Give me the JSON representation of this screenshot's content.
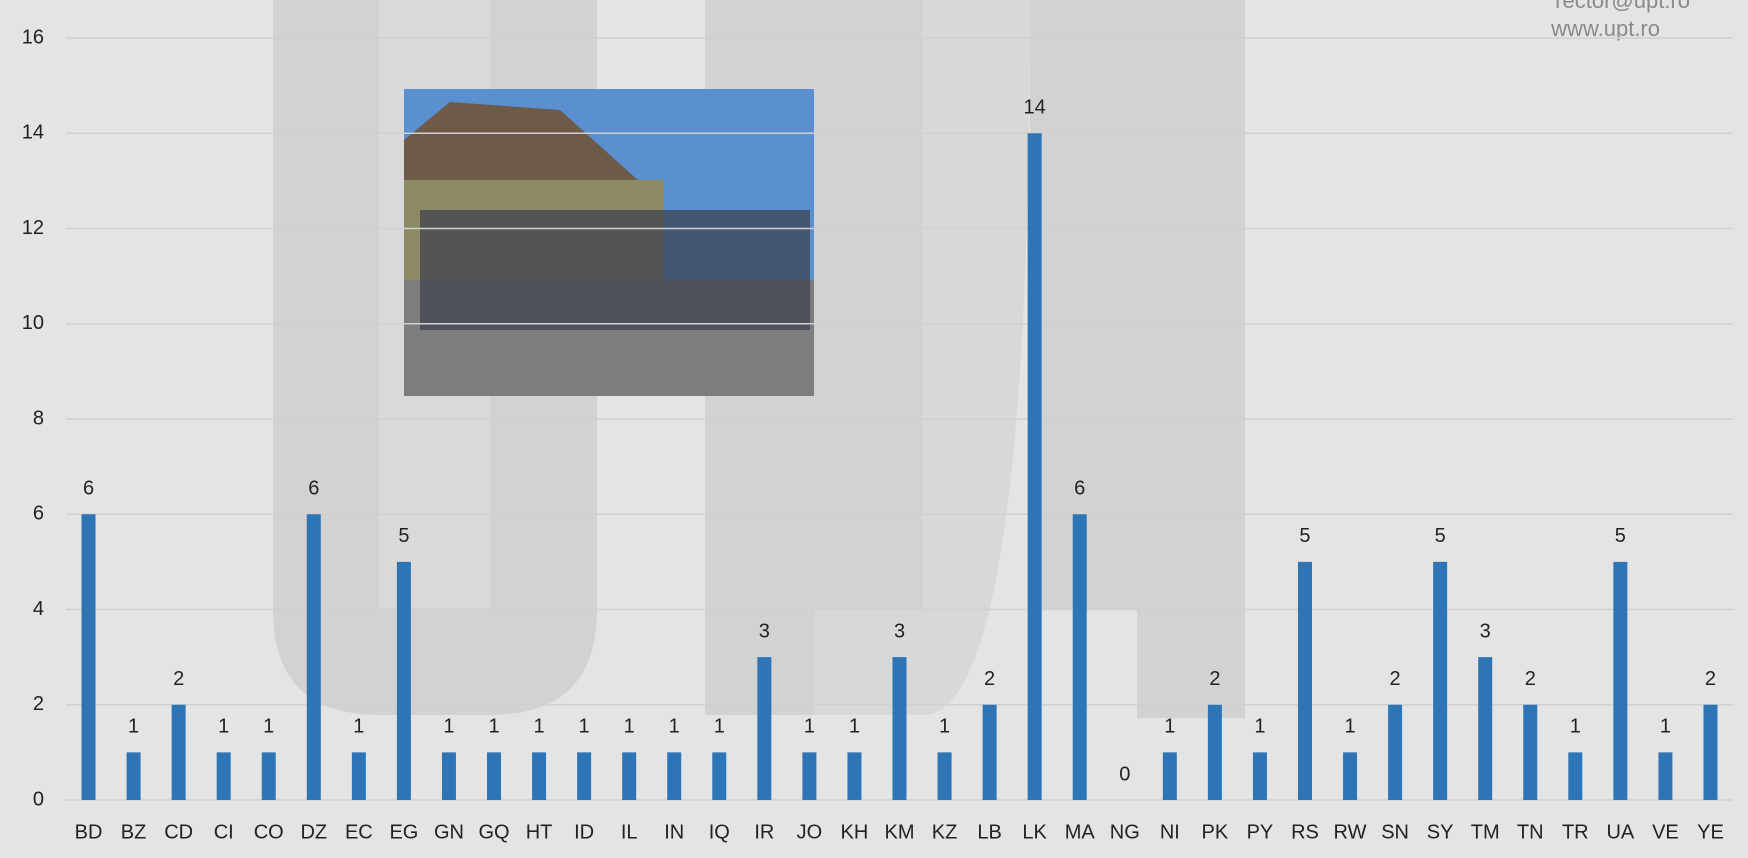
{
  "chart_data": {
    "type": "bar",
    "categories": [
      "BD",
      "BZ",
      "CD",
      "CI",
      "CO",
      "DZ",
      "EC",
      "EG",
      "GN",
      "GQ",
      "HT",
      "ID",
      "IL",
      "IN",
      "IQ",
      "IR",
      "JO",
      "KH",
      "KM",
      "KZ",
      "LB",
      "LK",
      "MA",
      "NG",
      "NI",
      "PK",
      "PY",
      "RS",
      "RW",
      "SN",
      "SY",
      "TM",
      "TN",
      "TR",
      "UA",
      "VE",
      "YE"
    ],
    "values": [
      6,
      1,
      2,
      1,
      1,
      6,
      1,
      5,
      1,
      1,
      1,
      1,
      1,
      1,
      1,
      3,
      1,
      1,
      3,
      1,
      2,
      14,
      6,
      0,
      1,
      2,
      1,
      5,
      1,
      2,
      5,
      3,
      2,
      1,
      5,
      1,
      2
    ],
    "color": "#2e75b6",
    "ylim": [
      0,
      16
    ],
    "yticks": [
      0,
      2,
      4,
      6,
      8,
      10,
      12,
      14,
      16
    ],
    "grid": true,
    "watermark": [
      "rector@upt.ro",
      "www.upt.ro"
    ]
  }
}
